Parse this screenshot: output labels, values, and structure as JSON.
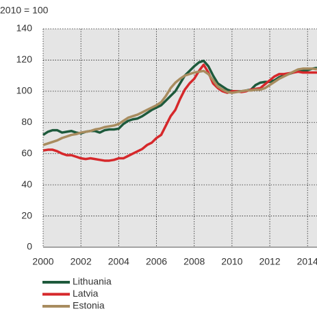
{
  "chart_data": {
    "type": "line",
    "title": "2010 = 100",
    "x": [
      2000,
      2000.25,
      2000.5,
      2000.75,
      2001,
      2001.25,
      2001.5,
      2001.75,
      2002,
      2002.25,
      2002.5,
      2002.75,
      2003,
      2003.25,
      2003.5,
      2003.75,
      2004,
      2004.25,
      2004.5,
      2004.75,
      2005,
      2005.25,
      2005.5,
      2005.75,
      2006,
      2006.25,
      2006.5,
      2006.75,
      2007,
      2007.25,
      2007.5,
      2007.75,
      2008,
      2008.25,
      2008.5,
      2008.75,
      2009,
      2009.25,
      2009.5,
      2009.75,
      2010,
      2010.25,
      2010.5,
      2010.75,
      2011,
      2011.25,
      2011.5,
      2011.75,
      2012,
      2012.25,
      2012.5,
      2012.75,
      2013,
      2013.25,
      2013.5,
      2013.75,
      2014,
      2014.25,
      2014.5
    ],
    "series": [
      {
        "name": "Lithuania",
        "color": "#1e5a3c",
        "values": [
          72,
          74,
          75,
          75,
          73.5,
          74,
          74.5,
          73.5,
          73,
          74,
          74.5,
          74.5,
          73.5,
          75,
          75.5,
          75.5,
          76,
          79,
          81,
          82,
          82.5,
          84,
          86,
          88,
          89.5,
          91,
          94,
          97,
          100,
          105,
          110,
          113,
          116,
          118.5,
          119.5,
          116,
          110,
          105,
          103,
          101,
          100,
          100,
          100,
          100.5,
          101,
          104,
          105.5,
          106,
          106,
          107,
          109,
          110,
          111,
          112,
          113,
          113,
          113.5,
          114.5,
          115
        ]
      },
      {
        "name": "Latvia",
        "color": "#d6282b",
        "values": [
          62,
          62.5,
          62.5,
          61.5,
          60,
          59,
          59,
          58,
          57,
          56.5,
          57,
          56.5,
          56,
          55.5,
          55.5,
          56,
          57,
          57,
          58.5,
          60,
          61.5,
          63,
          65.5,
          67,
          70,
          72,
          78,
          84,
          88,
          95,
          101,
          105,
          108,
          113,
          117,
          112,
          105,
          102,
          100,
          99,
          100,
          100,
          99.5,
          100,
          101,
          101.5,
          102,
          104.5,
          107,
          109.5,
          111,
          111,
          111.5,
          112,
          112.5,
          112,
          112,
          112,
          112
        ]
      },
      {
        "name": "Estonia",
        "color": "#a88c5f",
        "values": [
          65.5,
          66.5,
          67.5,
          68.5,
          70,
          71,
          72,
          72.5,
          73.5,
          74,
          74.5,
          75.5,
          76,
          77,
          77.5,
          78,
          79,
          81,
          83,
          84,
          85,
          86.5,
          88,
          89.5,
          91,
          93,
          97,
          102,
          105.5,
          108,
          110,
          111,
          112,
          112.5,
          113,
          111,
          107,
          103,
          101,
          99.5,
          99,
          99.5,
          100,
          100.5,
          100.5,
          101,
          101,
          102,
          104,
          106,
          108,
          109.5,
          111,
          112.5,
          114,
          114.5,
          114.5,
          114.5,
          114
        ]
      }
    ],
    "xlim": [
      2000,
      2014.5
    ],
    "xticks": [
      2000,
      2002,
      2004,
      2006,
      2008,
      2010,
      2012,
      2014
    ],
    "ylim": [
      0,
      140
    ],
    "yticks": [
      0,
      20,
      40,
      60,
      80,
      100,
      120,
      140
    ],
    "grid": true
  }
}
